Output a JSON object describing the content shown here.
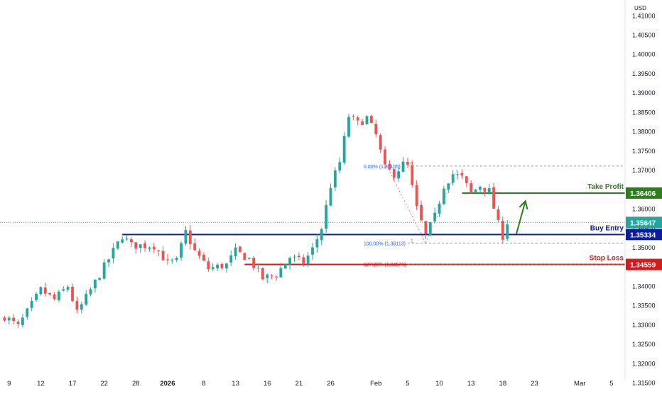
{
  "chart_data": {
    "type": "candlestick",
    "currency_label": "USD",
    "colors": {
      "up": "#26a69a",
      "down": "#ef5350",
      "buy_line": "#0d1b9e",
      "take_profit": "#2e7d1f",
      "stop_loss": "#d61a1a",
      "current_price": "#26a69a",
      "axis_text": "#131722"
    },
    "y_axis": {
      "range": [
        1.313,
        1.414
      ],
      "ticks": [
        "1.31500",
        "1.32000",
        "1.32500",
        "1.33000",
        "1.33500",
        "1.34000",
        "1.34500",
        "1.35000",
        "1.35500",
        "1.36000",
        "1.36500",
        "1.37000",
        "1.37500",
        "1.38000",
        "1.38500",
        "1.39000",
        "1.39500",
        "1.40000",
        "1.40500",
        "1.41000"
      ]
    },
    "x_axis": {
      "range": [
        -1,
        137
      ],
      "ticks": [
        {
          "label": "9",
          "i": 1
        },
        {
          "label": "12",
          "i": 8
        },
        {
          "label": "17",
          "i": 15
        },
        {
          "label": "22",
          "i": 22
        },
        {
          "label": "28",
          "i": 29
        },
        {
          "label": "2026",
          "i": 36,
          "bold": true
        },
        {
          "label": "8",
          "i": 44
        },
        {
          "label": "13",
          "i": 51
        },
        {
          "label": "16",
          "i": 58
        },
        {
          "label": "21",
          "i": 65
        },
        {
          "label": "26",
          "i": 72
        },
        {
          "label": "Feb",
          "i": 82
        },
        {
          "label": "5",
          "i": 89
        },
        {
          "label": "10",
          "i": 96
        },
        {
          "label": "13",
          "i": 103
        },
        {
          "label": "18",
          "i": 110
        },
        {
          "label": "23",
          "i": 117
        },
        {
          "label": "Mar",
          "i": 127
        },
        {
          "label": "5",
          "i": 134
        }
      ]
    },
    "waypoints": [
      [
        0,
        1.3322
      ],
      [
        3,
        1.3295
      ],
      [
        8,
        1.339
      ],
      [
        11,
        1.3365
      ],
      [
        14,
        1.34
      ],
      [
        16,
        1.333
      ],
      [
        20,
        1.341
      ],
      [
        23,
        1.347
      ],
      [
        26,
        1.353
      ],
      [
        28,
        1.3505
      ],
      [
        33,
        1.3505
      ],
      [
        36,
        1.346
      ],
      [
        38,
        1.3465
      ],
      [
        40,
        1.354
      ],
      [
        42,
        1.349
      ],
      [
        45,
        1.3445
      ],
      [
        49,
        1.3455
      ],
      [
        51,
        1.349
      ],
      [
        54,
        1.347
      ],
      [
        57,
        1.342
      ],
      [
        60,
        1.343
      ],
      [
        63,
        1.3475
      ],
      [
        66,
        1.346
      ],
      [
        68,
        1.3495
      ],
      [
        70,
        1.355
      ],
      [
        72,
        1.366
      ],
      [
        74,
        1.372
      ],
      [
        76,
        1.384
      ],
      [
        78,
        1.382
      ],
      [
        80,
        1.3835
      ],
      [
        82,
        1.379
      ],
      [
        84,
        1.3705
      ],
      [
        86,
        1.369
      ],
      [
        88,
        1.3715
      ],
      [
        89,
        1.371
      ],
      [
        91,
        1.36
      ],
      [
        93,
        1.353
      ],
      [
        95,
        1.358
      ],
      [
        97,
        1.366
      ],
      [
        99,
        1.369
      ],
      [
        101,
        1.368
      ],
      [
        103,
        1.364
      ],
      [
        105,
        1.366
      ],
      [
        107,
        1.3645
      ],
      [
        109,
        1.356
      ],
      [
        110,
        1.353
      ],
      [
        111,
        1.3565
      ]
    ],
    "levels": [
      {
        "name": "Take Profit",
        "value": 1.36406,
        "label": "1.36406",
        "color": "take_profit",
        "start_i": 101
      },
      {
        "name": "Buy Entry",
        "value": 1.35334,
        "label": "1.35334",
        "color": "buy_line",
        "start_i": 26
      },
      {
        "name": "Stop Loss",
        "value": 1.34559,
        "label": "1.34559",
        "color": "stop_loss",
        "start_i": 53
      }
    ],
    "current_price": {
      "value": 1.35647,
      "label": "1.35647"
    },
    "fibonacci": {
      "levels": [
        {
          "label": "0.00% (1.37105)",
          "value": 1.37105,
          "marker": "0"
        },
        {
          "label": "100.00% (1.35113)",
          "value": 1.35113,
          "marker": "1"
        },
        {
          "label": "127.20% (1.34571)",
          "value": 1.34571,
          "marker": ""
        }
      ],
      "start_i": 89,
      "end_i": 139
    },
    "arrow": {
      "from_i": 113,
      "from_value": 1.3535,
      "to_i": 115,
      "to_value": 1.362
    }
  }
}
